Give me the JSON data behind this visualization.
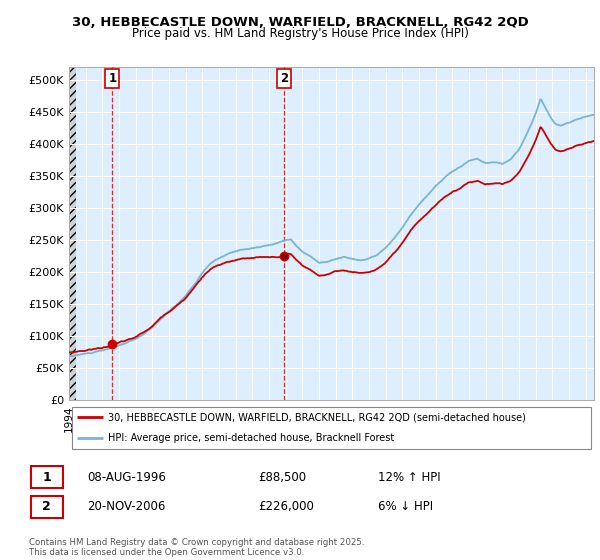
{
  "title_line1": "30, HEBBECASTLE DOWN, WARFIELD, BRACKNELL, RG42 2QD",
  "title_line2": "Price paid vs. HM Land Registry's House Price Index (HPI)",
  "hpi_color": "#7ab4d4",
  "price_color": "#cc0000",
  "vline_color": "#cc0000",
  "chart_bg_color": "#ddeeff",
  "ylim": [
    0,
    520000
  ],
  "yticks": [
    0,
    50000,
    100000,
    150000,
    200000,
    250000,
    300000,
    350000,
    400000,
    450000,
    500000
  ],
  "ytick_labels": [
    "£0",
    "£50K",
    "£100K",
    "£150K",
    "£200K",
    "£250K",
    "£300K",
    "£350K",
    "£400K",
    "£450K",
    "£500K"
  ],
  "sale1_year": 1996.6,
  "sale1_price": 88500,
  "sale1_label": "1",
  "sale2_year": 2006.9,
  "sale2_price": 226000,
  "sale2_label": "2",
  "legend_line1": "30, HEBBECASTLE DOWN, WARFIELD, BRACKNELL, RG42 2QD (semi-detached house)",
  "legend_line2": "HPI: Average price, semi-detached house, Bracknell Forest",
  "table_row1": [
    "1",
    "08-AUG-1996",
    "£88,500",
    "12% ↑ HPI"
  ],
  "table_row2": [
    "2",
    "20-NOV-2006",
    "£226,000",
    "6% ↓ HPI"
  ],
  "footer": "Contains HM Land Registry data © Crown copyright and database right 2025.\nThis data is licensed under the Open Government Licence v3.0.",
  "xstart": 1994,
  "xend": 2025.5
}
